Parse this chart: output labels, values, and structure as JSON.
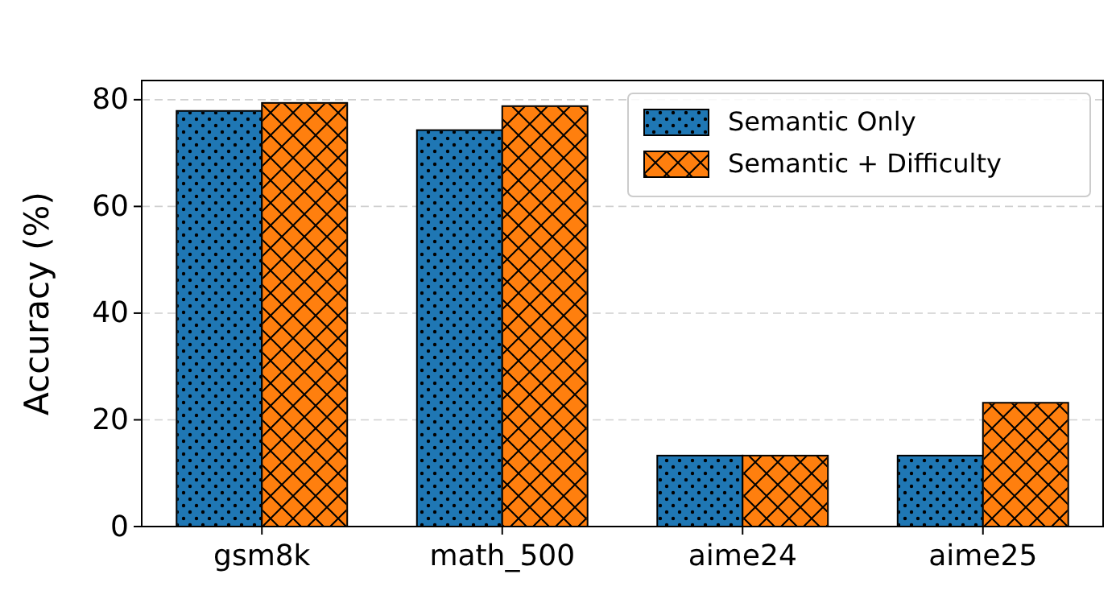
{
  "chart_data": {
    "type": "bar",
    "ylabel": "Accuracy (%)",
    "categories": [
      "gsm8k",
      "math_500",
      "aime24",
      "aime25"
    ],
    "series": [
      {
        "name": "Semantic Only",
        "color": "#1f77b4",
        "values": [
          77.9,
          74.3,
          13.3,
          13.3
        ]
      },
      {
        "name": "Semantic + Difficulty",
        "color": "#ff7f0e",
        "values": [
          79.4,
          78.8,
          13.3,
          23.2
        ]
      }
    ],
    "ylim": [
      0,
      83.6
    ],
    "yticks": [
      0,
      20,
      40,
      60,
      80
    ],
    "grid": "y",
    "legend": "top right"
  }
}
